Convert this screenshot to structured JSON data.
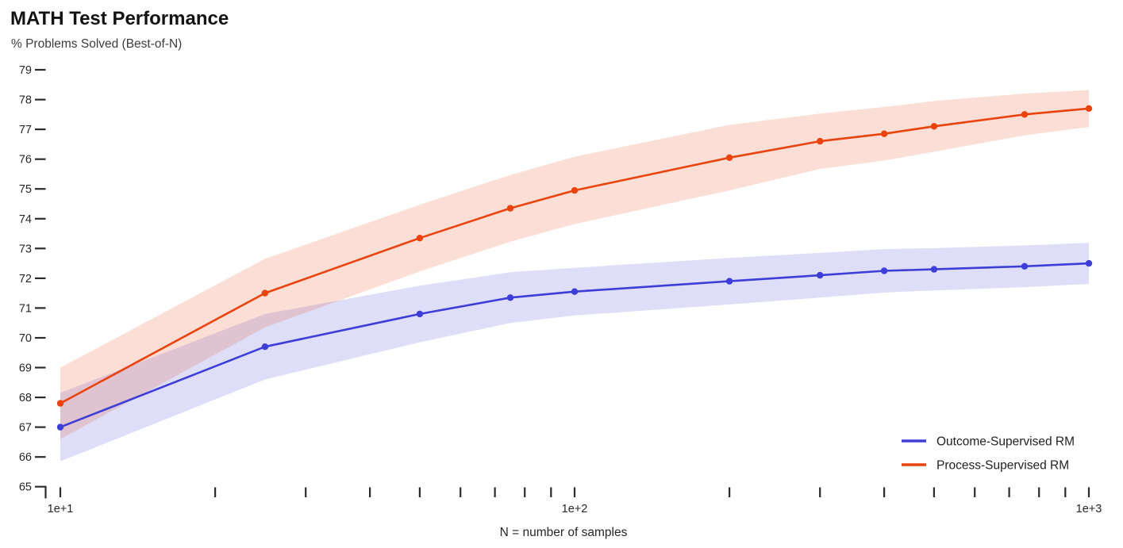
{
  "title": "MATH Test Performance",
  "subtitle": "% Problems Solved (Best-of-N)",
  "chart_data": {
    "type": "line",
    "title": "MATH Test Performance",
    "ylabel": "% Problems Solved (Best-of-N)",
    "xlabel": "N = number of samples",
    "x_scale": "log10",
    "xlim": [
      10,
      1000
    ],
    "ylim": [
      65,
      79
    ],
    "grid": false,
    "background": "#ffffff",
    "axis_color": "#2b2b2b",
    "y_ticks": [
      65,
      66,
      67,
      68,
      69,
      70,
      71,
      72,
      73,
      74,
      75,
      76,
      77,
      78,
      79
    ],
    "x_major_ticks": [
      {
        "value": 10,
        "label": "1e+1"
      },
      {
        "value": 100,
        "label": "1e+2"
      },
      {
        "value": 1000,
        "label": "1e+3"
      }
    ],
    "x_minor_ticks": [
      20,
      30,
      40,
      50,
      60,
      70,
      80,
      90,
      200,
      300,
      400,
      500,
      600,
      700,
      800,
      900
    ],
    "x": [
      10,
      25,
      50,
      75,
      100,
      200,
      300,
      400,
      500,
      750,
      1000
    ],
    "series": [
      {
        "id": "outcome-supervised-rm",
        "name": "Outcome-Supervised RM",
        "color": "#3d3dd8",
        "band_opacity": 0.17,
        "values": [
          67.0,
          69.7,
          70.8,
          71.35,
          71.55,
          71.9,
          72.1,
          72.25,
          72.3,
          72.4,
          72.5
        ],
        "ci": [
          1.15,
          1.1,
          0.95,
          0.85,
          0.8,
          0.78,
          0.75,
          0.73,
          0.71,
          0.7,
          0.69
        ]
      },
      {
        "id": "process-supervised-rm",
        "name": "Process-Supervised RM",
        "color": "#e9430e",
        "band_opacity": 0.17,
        "values": [
          67.8,
          71.5,
          73.35,
          74.35,
          74.95,
          76.05,
          76.6,
          76.85,
          77.1,
          77.5,
          77.7
        ],
        "ci": [
          1.2,
          1.15,
          1.12,
          1.12,
          1.13,
          1.1,
          0.93,
          0.9,
          0.85,
          0.7,
          0.62
        ]
      }
    ],
    "legend": {
      "position": "bottom-right"
    }
  }
}
